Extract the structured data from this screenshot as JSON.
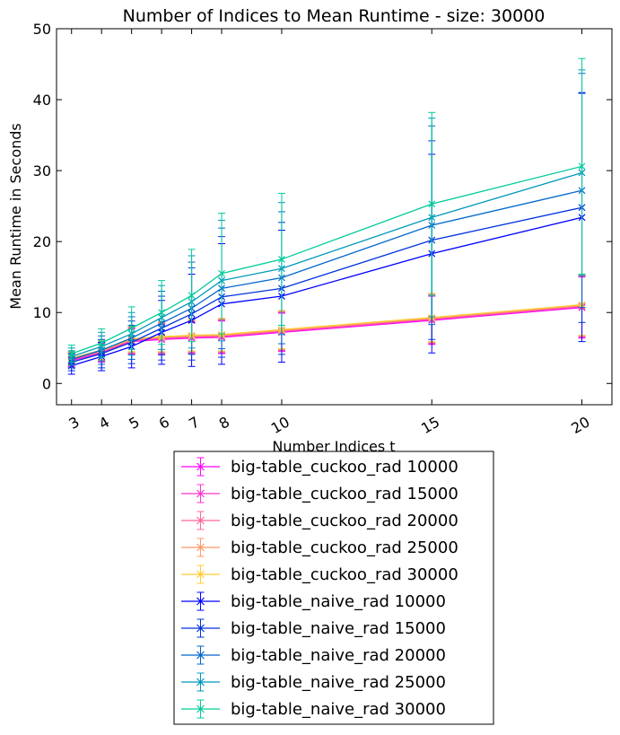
{
  "chart_data": {
    "type": "line",
    "title": "Number of Indices to Mean Runtime - size: 30000",
    "xlabel": "Number Indices t",
    "ylabel": "Mean Runtime in Seconds",
    "x": [
      3,
      4,
      5,
      6,
      7,
      8,
      10,
      15,
      20
    ],
    "xticks": [
      "3",
      "4",
      "5",
      "6",
      "7",
      "8",
      "10",
      "15",
      "20"
    ],
    "xlim": [
      2.5,
      21
    ],
    "yticks": [
      "0",
      "10",
      "20",
      "30",
      "40",
      "50"
    ],
    "ylim": [
      -3,
      50
    ],
    "grid": false,
    "legend_position": "below",
    "series": [
      {
        "name": "big-table_cuckoo_rad 10000",
        "color": "#ff00ff",
        "values": [
          3.2,
          4.3,
          5.9,
          6.2,
          6.4,
          6.5,
          7.2,
          8.9,
          10.7
        ],
        "err": [
          0.9,
          1.3,
          1.8,
          2.1,
          2.2,
          2.3,
          2.7,
          3.4,
          4.3
        ]
      },
      {
        "name": "big-table_cuckoo_rad 15000",
        "color": "#ff33cc",
        "values": [
          3.3,
          4.4,
          6.0,
          6.3,
          6.5,
          6.6,
          7.3,
          9.0,
          10.8
        ],
        "err": [
          0.9,
          1.3,
          1.8,
          2.1,
          2.2,
          2.3,
          2.7,
          3.4,
          4.3
        ]
      },
      {
        "name": "big-table_cuckoo_rad 20000",
        "color": "#ff6699",
        "values": [
          3.4,
          4.5,
          6.1,
          6.4,
          6.6,
          6.7,
          7.4,
          9.1,
          10.9
        ],
        "err": [
          0.9,
          1.3,
          1.8,
          2.1,
          2.2,
          2.3,
          2.7,
          3.4,
          4.3
        ]
      },
      {
        "name": "big-table_cuckoo_rad 25000",
        "color": "#ff9966",
        "values": [
          3.5,
          4.6,
          6.2,
          6.5,
          6.7,
          6.8,
          7.5,
          9.2,
          11.0
        ],
        "err": [
          0.9,
          1.3,
          1.8,
          2.1,
          2.2,
          2.3,
          2.7,
          3.4,
          4.3
        ]
      },
      {
        "name": "big-table_cuckoo_rad 30000",
        "color": "#ffcc33",
        "values": [
          3.6,
          4.7,
          6.3,
          6.6,
          6.8,
          6.9,
          7.6,
          9.3,
          11.1
        ],
        "err": [
          0.9,
          1.3,
          1.8,
          2.1,
          2.2,
          2.3,
          2.7,
          3.4,
          4.3
        ]
      },
      {
        "name": "big-table_naive_rad 10000",
        "color": "#0000ff",
        "values": [
          2.5,
          3.8,
          5.2,
          7.2,
          8.9,
          11.2,
          12.3,
          18.3,
          23.4
        ],
        "err": [
          1.2,
          2.0,
          3.0,
          4.5,
          6.5,
          8.5,
          9.3,
          14.0,
          17.5
        ]
      },
      {
        "name": "big-table_naive_rad 15000",
        "color": "#0033dd",
        "values": [
          3.0,
          4.2,
          5.8,
          7.8,
          9.8,
          12.2,
          13.4,
          20.2,
          24.8
        ],
        "err": [
          1.2,
          2.0,
          3.0,
          4.5,
          6.5,
          8.5,
          9.3,
          14.0,
          16.2
        ]
      },
      {
        "name": "big-table_naive_rad 20000",
        "color": "#0066cc",
        "values": [
          3.4,
          4.7,
          6.4,
          8.5,
          10.6,
          13.4,
          14.9,
          22.3,
          27.2
        ],
        "err": [
          1.2,
          2.0,
          3.0,
          4.5,
          6.5,
          8.5,
          9.3,
          14.0,
          16.5
        ]
      },
      {
        "name": "big-table_naive_rad 25000",
        "color": "#0099bb",
        "values": [
          3.8,
          5.2,
          7.0,
          9.3,
          11.5,
          14.5,
          16.2,
          23.4,
          29.7
        ],
        "err": [
          1.2,
          2.0,
          3.0,
          4.5,
          6.5,
          8.5,
          9.3,
          14.0,
          14.5
        ]
      },
      {
        "name": "big-table_naive_rad 30000",
        "color": "#00cc99",
        "values": [
          4.2,
          5.7,
          7.8,
          10.0,
          12.4,
          15.5,
          17.5,
          25.3,
          30.6
        ],
        "err": [
          1.2,
          2.0,
          3.0,
          4.5,
          6.5,
          8.5,
          9.3,
          12.9,
          15.2
        ]
      }
    ]
  }
}
